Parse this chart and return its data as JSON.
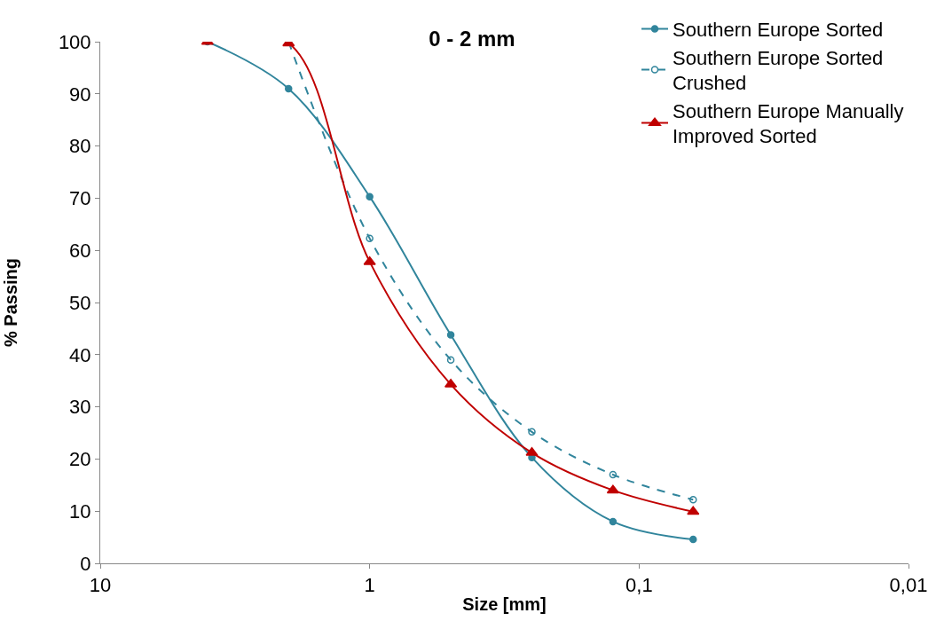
{
  "chart_data": {
    "type": "line",
    "title": "0 - 2 mm",
    "xlabel": "Size [mm]",
    "ylabel": "% Passing",
    "log": "x",
    "xlim": [
      10,
      0.01
    ],
    "xticks": [
      10,
      1,
      {
        "value": 0.1,
        "label": "0,1"
      },
      {
        "value": 0.01,
        "label": "0,01"
      }
    ],
    "ylim": [
      0,
      100
    ],
    "yticks": [
      0,
      10,
      20,
      30,
      40,
      50,
      60,
      70,
      80,
      90,
      100
    ],
    "legend": "top right",
    "series": [
      {
        "name": "Southern Europe Sorted",
        "color": "#31859c",
        "marker": "circle",
        "line_style": "solid",
        "x": [
          4,
          2,
          1,
          0.5,
          0.25,
          0.125,
          0.063
        ],
        "values": [
          100,
          91,
          70.3,
          43.8,
          20.3,
          8,
          4.6
        ]
      },
      {
        "name": "Southern Europe Sorted Crushed",
        "color": "#31859c",
        "marker": "circle",
        "line_style": "dashed",
        "x": [
          2,
          1,
          0.5,
          0.25,
          0.125,
          0.063
        ],
        "values": [
          100,
          62.3,
          39,
          25.2,
          17,
          12.2
        ]
      },
      {
        "name": "Southern Europe Manually Improved Sorted",
        "color": "#c00000",
        "marker": "triangle",
        "line_style": "solid",
        "x": [
          4,
          2,
          1,
          0.5,
          0.25,
          0.125,
          0.063
        ],
        "values": [
          100,
          99.7,
          57.8,
          34.3,
          21.2,
          14,
          9.9
        ]
      }
    ]
  }
}
